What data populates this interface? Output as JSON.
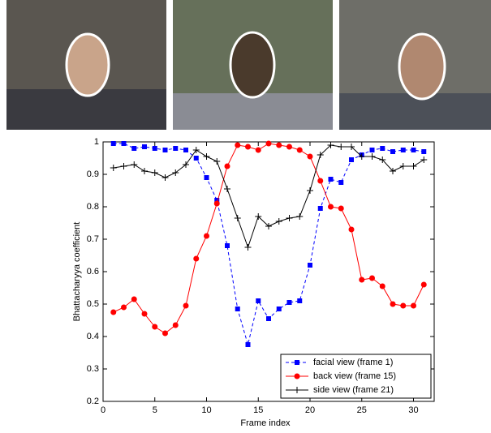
{
  "chart_data": {
    "type": "line",
    "xlabel": "Frame index",
    "ylabel": "Bhattacharyya coefficient",
    "x": [
      1,
      2,
      3,
      4,
      5,
      6,
      7,
      8,
      9,
      10,
      11,
      12,
      13,
      14,
      15,
      16,
      17,
      18,
      19,
      20,
      21,
      22,
      23,
      24,
      25,
      26,
      27,
      28,
      29,
      30,
      31
    ],
    "series": [
      {
        "name": "facial view (frame 1)",
        "color": "#0000ff",
        "marker": "square",
        "dash": "dashed",
        "values": [
          0.995,
          0.995,
          0.98,
          0.985,
          0.98,
          0.975,
          0.98,
          0.975,
          0.95,
          0.89,
          0.82,
          0.68,
          0.485,
          0.375,
          0.51,
          0.455,
          0.485,
          0.505,
          0.51,
          0.62,
          0.795,
          0.885,
          0.875,
          0.945,
          0.96,
          0.975,
          0.98,
          0.97,
          0.975,
          0.975,
          0.97
        ]
      },
      {
        "name": "back view (frame 15)",
        "color": "#ff0000",
        "marker": "circle",
        "dash": "solid",
        "values": [
          0.475,
          0.49,
          0.515,
          0.47,
          0.43,
          0.41,
          0.435,
          0.495,
          0.64,
          0.71,
          0.81,
          0.925,
          0.99,
          0.985,
          0.975,
          0.995,
          0.99,
          0.985,
          0.975,
          0.955,
          0.88,
          0.8,
          0.795,
          0.73,
          0.575,
          0.58,
          0.555,
          0.5,
          0.495,
          0.495,
          0.56
        ]
      },
      {
        "name": "side view (frame 21)",
        "color": "#000000",
        "marker": "plus",
        "dash": "solid",
        "values": [
          0.92,
          0.925,
          0.93,
          0.91,
          0.905,
          0.89,
          0.905,
          0.93,
          0.975,
          0.955,
          0.94,
          0.855,
          0.765,
          0.675,
          0.77,
          0.74,
          0.755,
          0.765,
          0.77,
          0.85,
          0.96,
          0.99,
          0.985,
          0.985,
          0.955,
          0.955,
          0.945,
          0.91,
          0.925,
          0.925,
          0.945
        ]
      }
    ],
    "xlim": [
      0,
      32
    ],
    "xticks": [
      0,
      5,
      10,
      15,
      20,
      25,
      30
    ],
    "ylim": [
      0.2,
      1
    ],
    "yticks": [
      0.2,
      0.3,
      0.4,
      0.5,
      0.6,
      0.7,
      0.8,
      0.9,
      1
    ],
    "legend": "lower right"
  }
}
